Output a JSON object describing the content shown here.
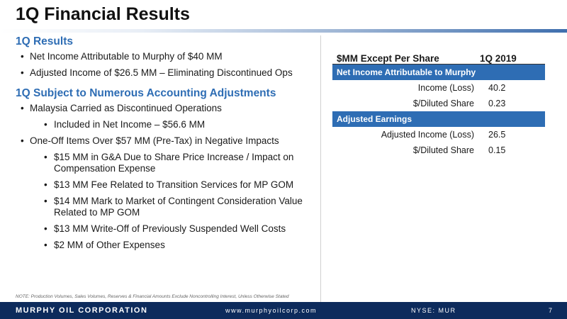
{
  "title": "1Q Financial Results",
  "left": {
    "section1": {
      "heading": "1Q Results",
      "bullets": [
        "Net Income Attributable to Murphy of $40 MM",
        "Adjusted Income of $26.5 MM – Eliminating Discontinued Ops"
      ]
    },
    "section2": {
      "heading": "1Q Subject to Numerous Accounting Adjustments",
      "bullet1": "Malaysia Carried as Discontinued Operations",
      "bullet1_sub": "Included in Net Income – $56.6 MM",
      "bullet2": "One-Off Items Over $57 MM (Pre-Tax) in Negative Impacts",
      "bullet2_subs": [
        "$15 MM in G&A Due to Share Price Increase / Impact on Compensation Expense",
        "$13 MM Fee Related to Transition Services for MP GOM",
        " $14 MM Mark to Market of Contingent Consideration Value Related to MP GOM",
        "$13 MM Write-Off of Previously Suspended Well Costs",
        "$2 MM of Other Expenses"
      ]
    }
  },
  "table": {
    "header_left": "$MM Except Per Share",
    "header_right": "1Q 2019",
    "group1": {
      "label": "Net Income Attributable to Murphy",
      "rows": [
        {
          "label": "Income (Loss)",
          "value": "40.2"
        },
        {
          "label": "$/Diluted Share",
          "value": "0.23"
        }
      ]
    },
    "group2": {
      "label": "Adjusted Earnings",
      "rows": [
        {
          "label": "Adjusted Income (Loss)",
          "value": "26.5"
        },
        {
          "label": "$/Diluted Share",
          "value": "0.15"
        }
      ]
    }
  },
  "note": "NOTE: Production Volumes, Sales Volumes, Reserves & Financial Amounts Exclude Noncontrolling Interest, Unless Otherwise Stated",
  "footer": {
    "company": "MURPHY OIL CORPORATION",
    "url": "www.murphyoilcorp.com",
    "ticker": "NYSE: MUR",
    "page": "7"
  },
  "colors": {
    "accent": "#2e6db4",
    "footer_bg": "#0d2b5c"
  }
}
